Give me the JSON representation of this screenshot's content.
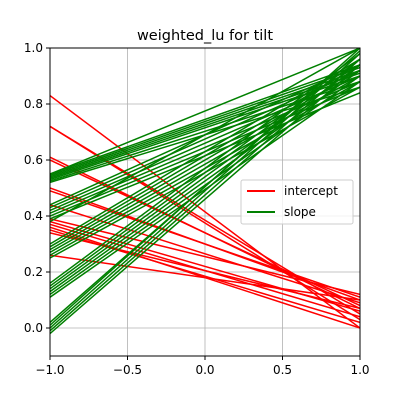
{
  "chart_data": {
    "type": "line",
    "title": "weighted_lu for tilt",
    "xlabel": "",
    "ylabel": "",
    "xlim": [
      -1.0,
      1.0
    ],
    "ylim": [
      -0.1,
      1.0
    ],
    "x_ticks": [
      "−1.0",
      "−0.5",
      "0.0",
      "0.5",
      "1.0"
    ],
    "x_tick_values": [
      -1.0,
      -0.5,
      0.0,
      0.5,
      1.0
    ],
    "y_ticks": [
      "0.0",
      "0.2",
      "0.4",
      "0.6",
      "0.8",
      "1.0"
    ],
    "y_tick_values": [
      0.0,
      0.2,
      0.4,
      0.6,
      0.8,
      1.0
    ],
    "grid": true,
    "legend_placement": "center-right",
    "series": [
      {
        "name": "intercept",
        "color": "#ff0000",
        "x": [
          -1.0,
          1.0
        ],
        "lines": [
          [
            0.83,
            0.0
          ],
          [
            0.72,
            0.03
          ],
          [
            0.72,
            0.05
          ],
          [
            0.61,
            0.07
          ],
          [
            0.6,
            0.08
          ],
          [
            0.5,
            0.1
          ],
          [
            0.49,
            0.11
          ],
          [
            0.44,
            0.09
          ],
          [
            0.39,
            0.12
          ],
          [
            0.38,
            0.06
          ],
          [
            0.37,
            0.04
          ],
          [
            0.36,
            0.0
          ],
          [
            0.35,
            0.02
          ],
          [
            0.34,
            0.07
          ],
          [
            0.26,
            0.1
          ]
        ]
      },
      {
        "name": "slope",
        "color": "#008000",
        "x": [
          -1.0,
          1.0
        ],
        "lines": [
          [
            0.53,
            0.9
          ],
          [
            0.535,
            0.91
          ],
          [
            0.54,
            0.92
          ],
          [
            0.545,
            0.93
          ],
          [
            0.55,
            0.94
          ],
          [
            0.52,
            0.86
          ],
          [
            0.525,
            0.88
          ],
          [
            0.4,
            0.86
          ],
          [
            0.41,
            0.88
          ],
          [
            0.42,
            0.9
          ],
          [
            0.43,
            0.92
          ],
          [
            0.44,
            0.94
          ],
          [
            0.39,
            0.84
          ],
          [
            0.26,
            0.88
          ],
          [
            0.27,
            0.9
          ],
          [
            0.28,
            0.92
          ],
          [
            0.29,
            0.94
          ],
          [
            0.3,
            0.96
          ],
          [
            0.25,
            0.86
          ],
          [
            0.12,
            0.9
          ],
          [
            0.13,
            0.92
          ],
          [
            0.14,
            0.94
          ],
          [
            0.15,
            0.96
          ],
          [
            0.16,
            0.98
          ],
          [
            0.11,
            0.88
          ],
          [
            -0.02,
            0.94
          ],
          [
            -0.01,
            0.96
          ],
          [
            0.0,
            0.98
          ],
          [
            0.01,
            1.0
          ],
          [
            0.02,
            0.99
          ],
          [
            0.55,
            1.0
          ],
          [
            0.38,
            1.0
          ]
        ]
      }
    ]
  }
}
